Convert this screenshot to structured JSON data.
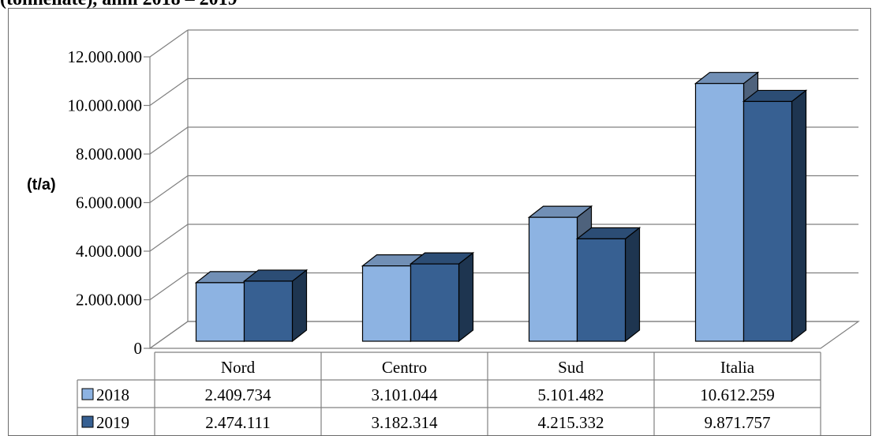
{
  "partial_title": "(tonnellate), anni 2018 – 2019",
  "chart_data": {
    "type": "bar",
    "title": "",
    "ylabel": "(t/a)",
    "xlabel": "",
    "categories": [
      "Nord",
      "Centro",
      "Sud",
      "Italia"
    ],
    "series": [
      {
        "name": "2018",
        "color": "#8db3e2",
        "values": [
          2409734,
          3101044,
          5101482,
          10612259
        ],
        "labels": [
          "2.409.734",
          "3.101.044",
          "5.101.482",
          "10.612.259"
        ]
      },
      {
        "name": "2019",
        "color": "#376092",
        "values": [
          2474111,
          3182314,
          4215332,
          9871757
        ],
        "labels": [
          "2.474.111",
          "3.182.314",
          "4.215.332",
          "9.871.757"
        ]
      }
    ],
    "ylim": [
      0,
      12000000
    ],
    "yticks": [
      0,
      2000000,
      4000000,
      6000000,
      8000000,
      10000000,
      12000000
    ],
    "ytick_labels": [
      "0",
      "2.000.000",
      "4.000.000",
      "6.000.000",
      "8.000.000",
      "10.000.000",
      "12.000.000"
    ],
    "grid": true,
    "style": "3d clustered columns with data table"
  }
}
